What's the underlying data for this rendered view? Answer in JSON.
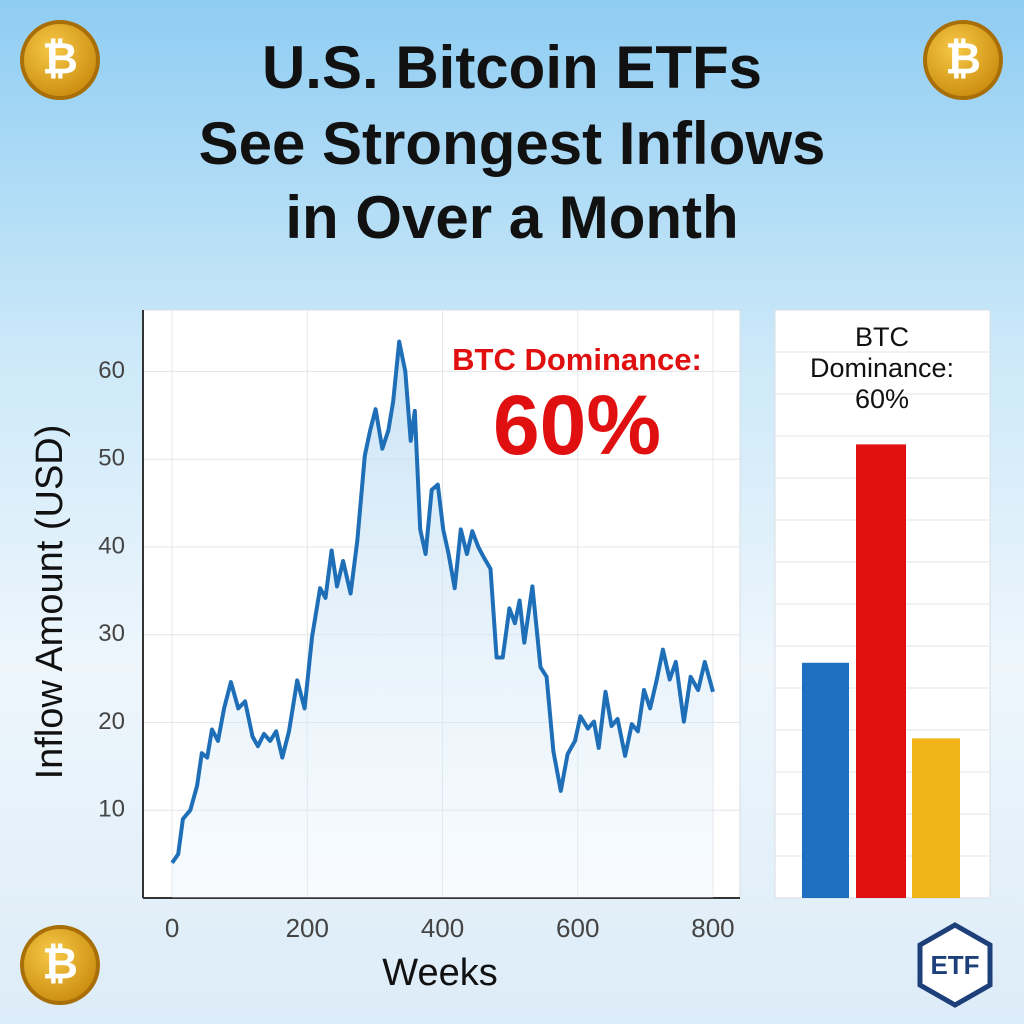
{
  "header": {
    "title_lines": [
      "U.S. Bitcoin ETFs",
      "See Strongest Inflows",
      "in Over a Month"
    ],
    "coin_symbol": "₿",
    "badge": "ETF"
  },
  "chart_data": [
    {
      "type": "line",
      "x_label": "Weeks",
      "y_label": "Inflow Amount (USD)",
      "color": "#1f6fb8",
      "annotation": "BTC Dominance:",
      "annotation_value": "60%",
      "annotation_color": "#e01010",
      "x": [
        0,
        9,
        16,
        27,
        37,
        44,
        52,
        59,
        68,
        77,
        87,
        98,
        108,
        119,
        127,
        136,
        145,
        154,
        163,
        173,
        185,
        196,
        207,
        219,
        227,
        236,
        244,
        253,
        264,
        274,
        285,
        293,
        301,
        311,
        320,
        327,
        336,
        345,
        353,
        359,
        367,
        375,
        384,
        393,
        401,
        409,
        418,
        427,
        436,
        444,
        453,
        462,
        471,
        480,
        489,
        499,
        507,
        514,
        521,
        533,
        545,
        554,
        564,
        575,
        585,
        596,
        604,
        615,
        624,
        631,
        641,
        650,
        659,
        670,
        680,
        689,
        698,
        707,
        717,
        726,
        736,
        745,
        757,
        767,
        778,
        788,
        800
      ],
      "values": [
        4,
        5,
        9,
        10,
        12.8,
        16.5,
        16,
        19.2,
        17.9,
        21.6,
        24.6,
        21.6,
        22.4,
        18.4,
        17.3,
        18.7,
        17.9,
        19,
        16,
        19,
        24.8,
        21.6,
        29.7,
        35.3,
        34.2,
        39.6,
        35.5,
        38.4,
        34.7,
        40.7,
        50.4,
        53.3,
        55.7,
        51.2,
        53.3,
        56.6,
        63.4,
        60,
        52.1,
        55.5,
        42,
        39.2,
        46.5,
        47.1,
        42,
        39.2,
        35.3,
        42,
        39.2,
        41.8,
        40,
        38.7,
        37.5,
        27.4,
        27.4,
        33,
        31.3,
        33.9,
        29.1,
        35.5,
        26.3,
        25.2,
        16.7,
        12.2,
        16.4,
        17.9,
        20.7,
        19.3,
        20.1,
        17.1,
        23.5,
        19.6,
        20.4,
        16.2,
        19.8,
        19,
        23.7,
        21.6,
        24.9,
        28.3,
        24.9,
        26.9,
        20.1,
        25.2,
        23.7,
        26.9,
        23.5
      ],
      "xlim": [
        -43,
        840
      ],
      "ylim": [
        0,
        67
      ],
      "xticks": [
        0,
        200,
        400,
        600,
        800
      ],
      "yticks": [
        10,
        20,
        30,
        40,
        50,
        60
      ],
      "grid": true
    },
    {
      "type": "bar",
      "title": "BTC Dominance: 60%",
      "categories": [
        null,
        null,
        null
      ],
      "values": [
        5.6,
        10.8,
        3.8
      ],
      "colors": [
        "#1f6fc0",
        "#e01010",
        "#f0b418"
      ],
      "ylim": [
        0,
        14
      ],
      "yticks": [
        1,
        2,
        3,
        4,
        5,
        6,
        7,
        8,
        9,
        10,
        11,
        12,
        13
      ],
      "grid": true
    }
  ]
}
